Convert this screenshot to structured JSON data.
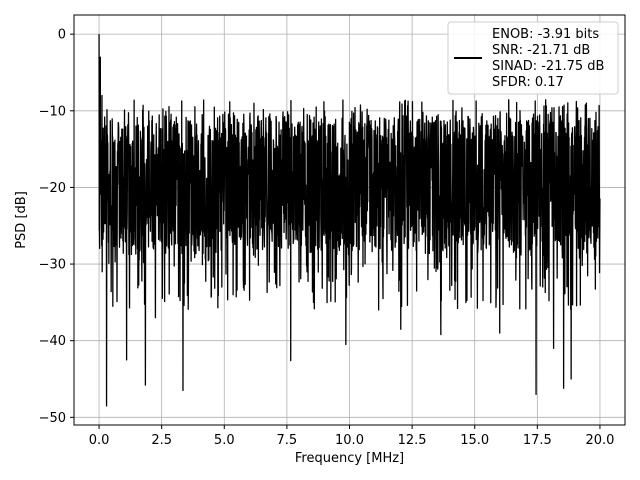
{
  "chart_data": {
    "type": "line",
    "xlabel": "Frequency [MHz]",
    "ylabel": "PSD [dB]",
    "xlim": [
      -1.0,
      21.0
    ],
    "ylim": [
      -51.0,
      2.5
    ],
    "xticks": [
      0.0,
      2.5,
      5.0,
      7.5,
      10.0,
      12.5,
      15.0,
      17.5,
      20.0
    ],
    "xtick_labels": [
      "0.0",
      "2.5",
      "5.0",
      "7.5",
      "10.0",
      "12.5",
      "15.0",
      "17.5",
      "20.0"
    ],
    "yticks": [
      0,
      -10,
      -20,
      -30,
      -40,
      -50
    ],
    "ytick_labels": [
      "0",
      "−10",
      "−20",
      "−30",
      "−40",
      "−50"
    ],
    "grid": true,
    "legend_position": "top-right",
    "series": [
      {
        "color": "#000000",
        "legend_lines": [
          "ENOB: -3.91 bits",
          "SNR: -21.71 dB",
          "SINAD: -21.75 dB",
          "SFDR: 0.17"
        ],
        "x_range": [
          0.0,
          20.0
        ],
        "typical_range": [
          -27,
          -12
        ],
        "peaks": [
          {
            "x": 0.0,
            "y": 0.0
          },
          {
            "x": 0.05,
            "y": -3.0
          },
          {
            "x": 0.12,
            "y": -8.0
          }
        ],
        "dips": [
          {
            "x": 0.3,
            "y": -48.5
          },
          {
            "x": 0.55,
            "y": -35.5
          },
          {
            "x": 1.1,
            "y": -42.5
          },
          {
            "x": 1.85,
            "y": -45.8
          },
          {
            "x": 2.25,
            "y": -37.0
          },
          {
            "x": 3.35,
            "y": -46.5
          },
          {
            "x": 4.9,
            "y": -33.0
          },
          {
            "x": 7.65,
            "y": -42.6
          },
          {
            "x": 9.85,
            "y": -40.5
          },
          {
            "x": 12.05,
            "y": -38.5
          },
          {
            "x": 13.65,
            "y": -39.2
          },
          {
            "x": 16.0,
            "y": -39.0
          },
          {
            "x": 17.45,
            "y": -47.0
          },
          {
            "x": 18.15,
            "y": -41.0
          },
          {
            "x": 18.55,
            "y": -46.2
          },
          {
            "x": 18.85,
            "y": -45.0
          }
        ]
      }
    ]
  }
}
